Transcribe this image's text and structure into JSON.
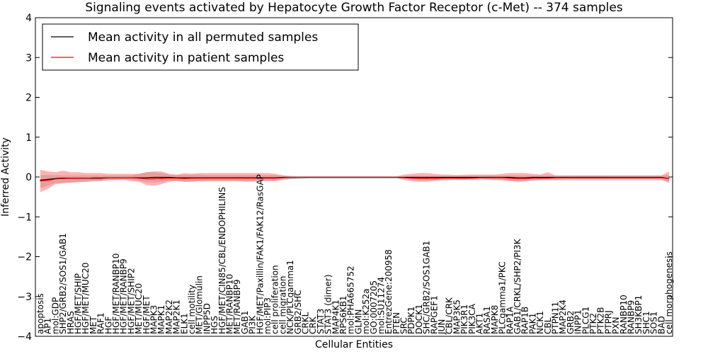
{
  "chart_data": {
    "type": "line",
    "title": "Signaling events activated by Hepatocyte Growth Factor Receptor (c-Met) -- 374 samples",
    "xlabel": "Cellular Entities",
    "ylabel": "Inferred Activity",
    "ylim": [
      -4,
      4
    ],
    "yticks": [
      -4,
      -3,
      -2,
      -1,
      0,
      1,
      2,
      3,
      4
    ],
    "ytick_labels": [
      "−4",
      "−3",
      "−2",
      "−1",
      "0",
      "1",
      "2",
      "3",
      "4"
    ],
    "grid": false,
    "legend_position": "top-left",
    "categories": [
      "apoptosis",
      "AP1",
      "mol:GDP",
      "SHP2/GRB2/SOS1/GAB1",
      "HRAS",
      "HGF/MET/SHIP",
      "HGF/MET/MUC20",
      "MET",
      "RAF1",
      "HGF",
      "HGF/MET/RANBP10",
      "HGF/MET/RANBP9",
      "HGF/MET/SHIP2",
      "MET/MUC20",
      "HGF/MET",
      "MAPK3",
      "MAPK1",
      "MAP2K2",
      "MAP2K1",
      "ELK1",
      "cell motility",
      "MET/Glomulin",
      "INPP5D",
      "HGS",
      "HGF/MET/CIN85/CBL/ENDOPHILINS",
      "MET/RANBP10",
      "MET/RANBP9",
      "GAB1",
      "PI3K",
      "HGF/MET/Paxillin/FAK1/FAK12/RasGAP",
      "mol:PIP3",
      "cell proliferation",
      "cell migration",
      "NCK/PLCgamma1",
      "GRB2/SHC",
      "CRKL",
      "CRK",
      "STAT3",
      "STAT3 (dimer)",
      "MAP4K1",
      "RPS6KB1",
      "mol:PHA665752",
      "GLMN",
      "mol:K252a",
      "GO:0007205",
      "mol:SU11274",
      "EntrezGene:200958",
      "PTEN",
      "SRC",
      "PDPK1",
      "DOCK1",
      "SHC/GRB2/SOS1GAB1",
      "RAPGEF1",
      "JUN",
      "CBL/CRK",
      "MAP3K5",
      "PIK3R1",
      "PIK3CA",
      "AKT1",
      "RASA1",
      "MAPK8",
      "PLCgamma1/PKC",
      "RAP1A",
      "GAB1/CRKL/SHP2/PI3K",
      "RAP1B",
      "PAK1",
      "NCK1",
      "CBL",
      "PTPN11",
      "MAP2K4",
      "GRB2",
      "INPP1",
      "PLCG1",
      "PTK2",
      "PTK2B",
      "PTPRJ",
      "PXN",
      "RANBP10",
      "RANBP9",
      "SH3KBP1",
      "SHC1",
      "SOS1",
      "BAD",
      "cell morphogenesis"
    ],
    "series": [
      {
        "name": "Mean activity in all permuted samples",
        "color": "#000000",
        "values": [
          -0.08,
          -0.06,
          -0.04,
          -0.03,
          -0.03,
          -0.03,
          -0.03,
          -0.03,
          -0.03,
          -0.02,
          -0.02,
          -0.02,
          -0.02,
          -0.02,
          -0.02,
          -0.01,
          -0.01,
          -0.01,
          -0.02,
          -0.02,
          -0.02,
          -0.02,
          -0.02,
          -0.02,
          -0.02,
          -0.02,
          -0.02,
          -0.02,
          -0.02,
          -0.02,
          -0.02,
          -0.02,
          -0.01,
          -0.01,
          -0.01,
          -0.01,
          -0.01,
          -0.01,
          -0.01,
          -0.01,
          -0.01,
          -0.01,
          -0.01,
          -0.01,
          -0.01,
          -0.01,
          -0.01,
          -0.01,
          -0.01,
          -0.01,
          -0.01,
          -0.01,
          -0.01,
          -0.01,
          -0.01,
          -0.01,
          -0.01,
          -0.01,
          -0.01,
          -0.01,
          -0.01,
          -0.01,
          -0.01,
          -0.02,
          -0.02,
          -0.01,
          -0.01,
          -0.01,
          -0.01,
          -0.01,
          -0.01,
          -0.01,
          -0.01,
          -0.01,
          -0.01,
          -0.01,
          -0.01,
          -0.01,
          -0.01,
          -0.01,
          -0.01,
          -0.01,
          -0.01,
          -0.04
        ],
        "band_low": [
          -0.28,
          -0.22,
          -0.15,
          -0.14,
          -0.14,
          -0.13,
          -0.12,
          -0.11,
          -0.1,
          -0.08,
          -0.07,
          -0.06,
          -0.06,
          -0.1,
          -0.13,
          -0.14,
          -0.12,
          -0.1,
          -0.1,
          -0.12,
          -0.12,
          -0.11,
          -0.1,
          -0.1,
          -0.1,
          -0.1,
          -0.1,
          -0.1,
          -0.1,
          -0.1,
          -0.1,
          -0.1,
          -0.08,
          -0.06,
          -0.05,
          -0.04,
          -0.03,
          -0.03,
          -0.03,
          -0.03,
          -0.03,
          -0.03,
          -0.03,
          -0.03,
          -0.03,
          -0.03,
          -0.03,
          -0.03,
          -0.04,
          -0.05,
          -0.06,
          -0.07,
          -0.07,
          -0.06,
          -0.05,
          -0.06,
          -0.07,
          -0.08,
          -0.08,
          -0.07,
          -0.08,
          -0.08,
          -0.09,
          -0.11,
          -0.11,
          -0.1,
          -0.09,
          -0.09,
          -0.09,
          -0.09,
          -0.09,
          -0.09,
          -0.09,
          -0.09,
          -0.09,
          -0.09,
          -0.09,
          -0.09,
          -0.09,
          -0.09,
          -0.09,
          -0.09,
          -0.09,
          -0.14
        ],
        "band_high": [
          0.05,
          0.05,
          0.05,
          0.04,
          0.04,
          0.04,
          0.04,
          0.04,
          0.04,
          0.04,
          0.04,
          0.04,
          0.04,
          0.08,
          0.12,
          0.12,
          0.1,
          0.06,
          0.05,
          0.06,
          0.06,
          0.06,
          0.05,
          0.05,
          0.05,
          0.05,
          0.05,
          0.05,
          0.05,
          0.05,
          0.05,
          0.05,
          0.04,
          0.03,
          0.02,
          0.02,
          0.02,
          0.02,
          0.02,
          0.02,
          0.02,
          0.02,
          0.02,
          0.02,
          0.02,
          0.02,
          0.02,
          0.02,
          0.02,
          0.03,
          0.03,
          0.03,
          0.03,
          0.03,
          0.03,
          0.03,
          0.03,
          0.04,
          0.04,
          0.04,
          0.04,
          0.04,
          0.04,
          0.04,
          0.04,
          0.04,
          0.04,
          0.04,
          0.04,
          0.04,
          0.04,
          0.04,
          0.04,
          0.04,
          0.04,
          0.04,
          0.04,
          0.04,
          0.04,
          0.04,
          0.04,
          0.04,
          0.04,
          0.05
        ]
      },
      {
        "name": "Mean activity in patient samples",
        "color": "#ff0000",
        "values": [
          -0.1,
          -0.09,
          -0.05,
          -0.04,
          -0.03,
          -0.03,
          -0.03,
          -0.02,
          -0.02,
          -0.02,
          -0.02,
          -0.02,
          -0.02,
          -0.03,
          -0.05,
          -0.05,
          -0.04,
          -0.03,
          -0.03,
          -0.04,
          -0.03,
          -0.03,
          -0.03,
          -0.03,
          -0.03,
          -0.03,
          -0.03,
          -0.03,
          -0.03,
          -0.03,
          -0.03,
          -0.03,
          -0.02,
          -0.01,
          -0.01,
          -0.01,
          -0.01,
          -0.01,
          -0.01,
          -0.01,
          -0.01,
          -0.01,
          -0.01,
          -0.01,
          -0.01,
          -0.01,
          -0.01,
          -0.01,
          -0.02,
          -0.03,
          -0.04,
          -0.04,
          -0.04,
          -0.03,
          -0.03,
          -0.03,
          -0.03,
          -0.03,
          -0.02,
          -0.02,
          -0.02,
          -0.02,
          -0.03,
          -0.04,
          -0.04,
          -0.03,
          -0.03,
          -0.03,
          -0.02,
          -0.02,
          -0.02,
          -0.02,
          -0.02,
          -0.02,
          -0.02,
          -0.02,
          -0.02,
          -0.02,
          -0.02,
          -0.02,
          -0.02,
          -0.02,
          -0.02,
          -0.04
        ],
        "band_low": [
          -0.38,
          -0.3,
          -0.18,
          -0.16,
          -0.14,
          -0.13,
          -0.12,
          -0.1,
          -0.1,
          -0.08,
          -0.08,
          -0.08,
          -0.1,
          -0.12,
          -0.2,
          -0.22,
          -0.18,
          -0.12,
          -0.1,
          -0.12,
          -0.12,
          -0.1,
          -0.1,
          -0.1,
          -0.1,
          -0.1,
          -0.1,
          -0.12,
          -0.12,
          -0.1,
          -0.1,
          -0.1,
          -0.06,
          -0.04,
          -0.03,
          -0.02,
          -0.02,
          -0.02,
          -0.02,
          -0.02,
          -0.02,
          -0.02,
          -0.02,
          -0.02,
          -0.02,
          -0.02,
          -0.02,
          -0.02,
          -0.08,
          -0.1,
          -0.12,
          -0.12,
          -0.1,
          -0.08,
          -0.08,
          -0.07,
          -0.07,
          -0.06,
          -0.05,
          -0.06,
          -0.07,
          -0.08,
          -0.1,
          -0.12,
          -0.1,
          -0.08,
          -0.07,
          -0.06,
          -0.07,
          -0.06,
          -0.06,
          -0.06,
          -0.06,
          -0.06,
          -0.06,
          -0.06,
          -0.06,
          -0.06,
          -0.06,
          -0.06,
          -0.06,
          -0.06,
          -0.06,
          -0.14
        ],
        "band_high": [
          0.18,
          0.14,
          0.12,
          0.16,
          0.12,
          0.12,
          0.1,
          0.1,
          0.1,
          0.08,
          0.08,
          0.08,
          0.08,
          0.08,
          0.12,
          0.14,
          0.14,
          0.08,
          0.06,
          0.1,
          0.08,
          0.1,
          0.1,
          0.1,
          0.1,
          0.1,
          0.1,
          0.1,
          0.1,
          0.1,
          0.1,
          0.08,
          0.04,
          0.02,
          0.02,
          0.02,
          0.02,
          0.02,
          0.02,
          0.02,
          0.02,
          0.02,
          0.02,
          0.02,
          0.02,
          0.02,
          0.02,
          0.02,
          0.06,
          0.08,
          0.1,
          0.1,
          0.08,
          0.06,
          0.06,
          0.05,
          0.06,
          0.06,
          0.06,
          0.06,
          0.06,
          0.08,
          0.1,
          0.1,
          0.1,
          0.08,
          0.06,
          0.12,
          0.04,
          0.04,
          0.04,
          0.04,
          0.04,
          0.04,
          0.04,
          0.04,
          0.04,
          0.04,
          0.04,
          0.04,
          0.04,
          0.04,
          0.04,
          0.14
        ]
      }
    ],
    "legend": [
      {
        "label": "Mean activity in all permuted samples",
        "color": "#000000"
      },
      {
        "label": "Mean activity in patient samples",
        "color": "#ff0000"
      }
    ]
  }
}
